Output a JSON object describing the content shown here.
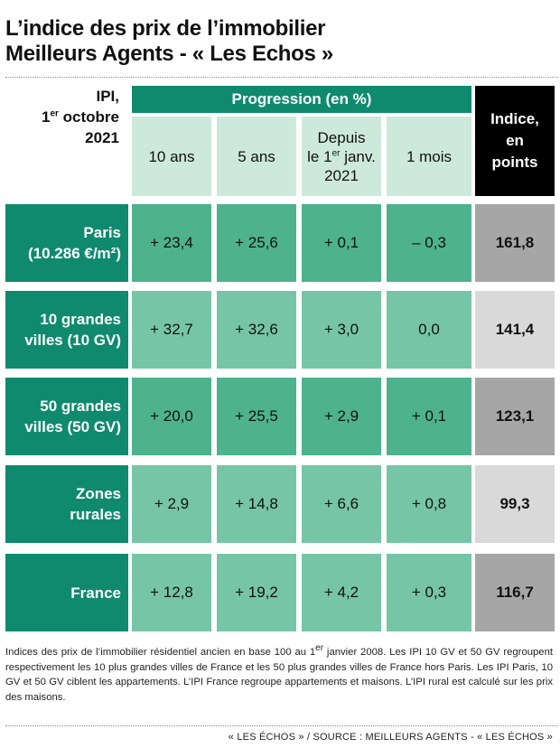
{
  "title_lines": [
    "L’indice des prix de l’immobilier",
    "Meilleurs Agents - « Les Echos »"
  ],
  "corner": {
    "line1": "IPI,",
    "line2_pre": "1",
    "line2_sup": "er",
    "line2_post": " octobre",
    "line3": "2021"
  },
  "header": {
    "band": "Progression (en %)",
    "col_10": "10 ans",
    "col_5": "5 ans",
    "col_depuis_line1": "Depuis",
    "col_depuis_pre": "le 1",
    "col_depuis_sup": "er",
    "col_depuis_post": " janv.",
    "col_depuis_line3": "2021",
    "col_1m": "1 mois",
    "indice_lines": [
      "Indice,",
      "en",
      "points"
    ]
  },
  "colors": {
    "accent": "#108a6e",
    "header_cell": "#cde9dc",
    "indice_dark": "#a6a6a6",
    "indice_light": "#d9d9d9"
  },
  "chart_data": {
    "type": "table",
    "title": "L’indice des prix de l’immobilier Meilleurs Agents - « Les Echos »",
    "columns": [
      "10 ans",
      "5 ans",
      "Depuis le 1er janv. 2021",
      "1 mois",
      "Indice, en points"
    ],
    "rows": [
      {
        "label_lines": [
          "Paris",
          "(10.286 €/m²)"
        ],
        "y10": "+ 23,4",
        "y5": "+ 25,6",
        "ytd": "+ 0,1",
        "m1": "– 0,3",
        "indice": "161,8"
      },
      {
        "label_lines": [
          "10 grandes",
          "villes (10 GV)"
        ],
        "y10": "+ 32,7",
        "y5": "+ 32,6",
        "ytd": "+ 3,0",
        "m1": "0,0",
        "indice": "141,4"
      },
      {
        "label_lines": [
          "50 grandes",
          "villes (50 GV)"
        ],
        "y10": "+ 20,0",
        "y5": "+ 25,5",
        "ytd": "+ 2,9",
        "m1": "+ 0,1",
        "indice": "123,1"
      },
      {
        "label_lines": [
          "Zones",
          "rurales"
        ],
        "y10": "+ 2,9",
        "y5": "+ 14,8",
        "ytd": "+ 6,6",
        "m1": "+ 0,8",
        "indice": "99,3"
      },
      {
        "label_lines": [
          "France"
        ],
        "y10": "+ 12,8",
        "y5": "+ 19,2",
        "ytd": "+ 4,2",
        "m1": "+ 0,3",
        "indice": "116,7"
      }
    ]
  },
  "note": {
    "part1": "Indices des prix de l’immobilier résidentiel ancien en base 100 au 1",
    "sup": "er",
    "part2": " janvier 2008. Les IPI 10 GV et 50 GV regroupent respectivement les 10 plus grandes villes de France et les 50 plus grandes villes de France hors Paris. Les IPI Paris, 10 GV et 50 GV ciblent les appartements. L’IPI France regroupe appartements et maisons. L’IPI rural est calculé sur les prix des maisons."
  },
  "source": "« LES ÉCHOS » / SOURCE : MEILLEURS AGENTS - « LES ÉCHOS »"
}
